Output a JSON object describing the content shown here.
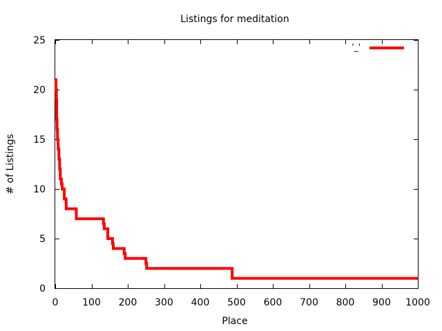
{
  "chart_data": {
    "type": "line",
    "title": "Listings for meditation",
    "xlabel": "Place",
    "ylabel": "# of Listings",
    "xlim": [
      0,
      1000
    ],
    "ylim": [
      0,
      25
    ],
    "xticks": [
      0,
      100,
      200,
      300,
      400,
      500,
      600,
      700,
      800,
      900,
      1000
    ],
    "yticks": [
      0,
      5,
      10,
      15,
      20,
      25
    ],
    "grid": false,
    "legend": {
      "position": "top-right",
      "label": "'_'"
    },
    "series": [
      {
        "color": "#ff0000",
        "style": "step",
        "points": [
          [
            0,
            21
          ],
          [
            2,
            20
          ],
          [
            3,
            19
          ],
          [
            4,
            17
          ],
          [
            5,
            16
          ],
          [
            6,
            15
          ],
          [
            8,
            14
          ],
          [
            10,
            13
          ],
          [
            12,
            12
          ],
          [
            14,
            11
          ],
          [
            17,
            10.5
          ],
          [
            19,
            10
          ],
          [
            25,
            9
          ],
          [
            30,
            8
          ],
          [
            58,
            7
          ],
          [
            133,
            6.5
          ],
          [
            135,
            6
          ],
          [
            145,
            5
          ],
          [
            158,
            4.5
          ],
          [
            160,
            4
          ],
          [
            190,
            3.5
          ],
          [
            193,
            3
          ],
          [
            250,
            2.5
          ],
          [
            252,
            2
          ],
          [
            488,
            1
          ],
          [
            1000,
            1
          ]
        ]
      }
    ]
  }
}
